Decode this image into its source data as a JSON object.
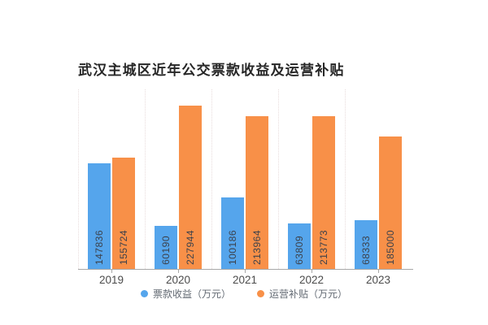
{
  "title": "武汉主城区近年公交票款收益及运营补贴",
  "chart_data": {
    "type": "bar",
    "title": "武汉主城区近年公交票款收益及运营补贴",
    "categories": [
      "2019",
      "2020",
      "2021",
      "2022",
      "2023"
    ],
    "series": [
      {
        "name": "票款收益（万元）",
        "color": "#55a5ec",
        "values": [
          147836,
          60190,
          100186,
          63809,
          68333
        ]
      },
      {
        "name": "运营补贴（万元）",
        "color": "#f89048",
        "values": [
          155724,
          227944,
          213964,
          213773,
          185000
        ]
      }
    ],
    "xlabel": "",
    "ylabel": "",
    "ylim": [
      0,
      251000
    ],
    "grid": "vertical dotted separators between category groups",
    "legend_position": "bottom-center",
    "value_labels": "rotated 90deg inside bar bottoms"
  },
  "colors": {
    "background": "#ffffff",
    "title_text": "#262626",
    "bar_value_text": "#3c414b",
    "axis_line": "#a8a8a8",
    "x_label_text": "#4c4c4c",
    "legend_text": "#636a73",
    "separator_line": "#e8dcdc"
  }
}
